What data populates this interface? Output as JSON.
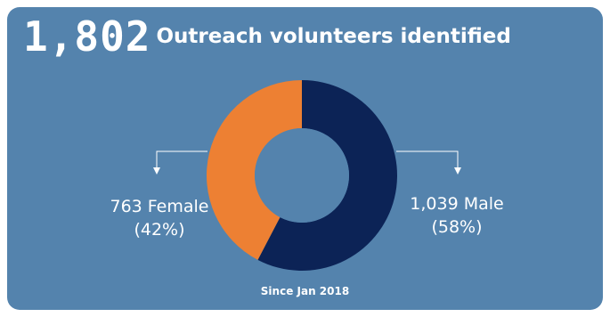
{
  "headline": {
    "total": "1,802",
    "text": "Outreach volunteers identified"
  },
  "footnote": "Since Jan 2018",
  "labels": {
    "female_count": "763 Female",
    "female_pct": "(42%)",
    "male_count": "1,039 Male",
    "male_pct": "(58%)"
  },
  "colors": {
    "background": "#5483ad",
    "male": "#0c2356",
    "female": "#ed8033",
    "text": "#ffffff"
  },
  "chart_data": {
    "type": "pie",
    "donut": true,
    "categories": [
      "Male",
      "Female"
    ],
    "values": [
      1039,
      763
    ],
    "percent": [
      58,
      42
    ]
  }
}
